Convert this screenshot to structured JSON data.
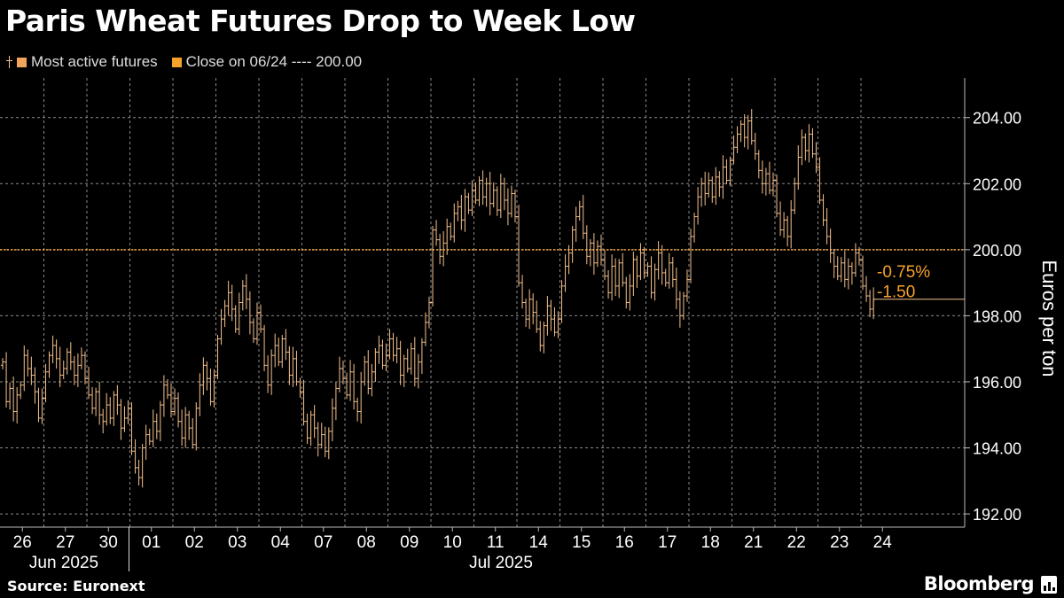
{
  "header": {
    "title": "Paris Wheat Futures Drop to Week Low"
  },
  "legend": {
    "series_label": "Most active futures",
    "close_label": "Close on 06/24 ---- 200.00"
  },
  "annotations": {
    "pct_change": "-0.75%",
    "abs_change": "-1.50"
  },
  "footer": {
    "source": "Source: Euronext",
    "brand": "Bloomberg",
    "brand_icon": "bloomberg-terminal-icon"
  },
  "colors": {
    "background": "#000000",
    "candle": "#f5c28e",
    "reference_line": "#f7a22b",
    "annotation_text": "#f7a22b",
    "grid": "#8a8a8a"
  },
  "chart_data": {
    "type": "ohlc",
    "title": "Paris Wheat Futures Drop to Week Low",
    "ylabel": "Euros per ton",
    "ylim": [
      191.6,
      205.2
    ],
    "yticks": [
      192,
      194,
      196,
      198,
      200,
      202,
      204
    ],
    "ytick_labels": [
      "192.00",
      "194.00",
      "196.00",
      "198.00",
      "200.00",
      "202.00",
      "204.00"
    ],
    "grid": true,
    "legend_position": "top-left",
    "reference_line": {
      "label": "Close on 06/24",
      "value": 200.0
    },
    "last_value": 198.5,
    "change_abs": -1.5,
    "change_pct": -0.75,
    "x_categories": [
      "26",
      "27",
      "30",
      "01",
      "02",
      "03",
      "04",
      "07",
      "08",
      "09",
      "10",
      "11",
      "14",
      "15",
      "16",
      "17",
      "18",
      "21",
      "22",
      "23",
      "24"
    ],
    "month_labels": [
      {
        "label": "Jun 2025",
        "start_index": 0
      },
      {
        "label": "Jul 2025",
        "start_index": 3
      }
    ],
    "session_closes": [
      [
        196.6,
        195.4,
        195.8,
        195.1,
        195.6,
        195.9,
        196.8,
        196.4,
        196.2,
        195.7,
        194.9,
        195.5
      ],
      [
        196.3,
        196.8,
        197.1,
        196.7,
        196.2,
        196.4,
        196.9,
        196.6,
        196.2,
        196.5,
        196.8,
        196.1
      ],
      [
        195.6,
        195.2,
        195.7,
        195.0,
        194.8,
        195.3,
        194.9,
        195.6,
        195.3,
        194.6,
        194.9,
        195.2
      ],
      [
        193.9,
        193.4,
        193.1,
        194.0,
        194.4,
        194.2,
        194.8,
        194.5,
        195.3,
        195.9,
        195.6,
        195.1
      ],
      [
        195.5,
        194.8,
        194.3,
        195.0,
        194.6,
        194.1,
        195.2,
        195.9,
        196.5,
        196.1,
        195.4,
        196.2
      ],
      [
        197.3,
        197.9,
        198.3,
        198.7,
        198.2,
        197.6,
        198.4,
        198.9,
        198.5,
        197.8,
        197.3,
        198.1
      ],
      [
        197.6,
        196.5,
        195.9,
        196.8,
        197.1,
        196.6,
        197.3,
        196.9,
        196.2,
        196.7,
        196.0,
        195.7
      ],
      [
        194.8,
        194.3,
        195.0,
        194.6,
        194.1,
        194.4,
        193.9,
        194.5,
        195.2,
        195.8,
        196.4,
        196.1
      ],
      [
        195.6,
        196.3,
        195.4,
        195.1,
        196.0,
        196.6,
        195.8,
        196.3,
        196.9,
        197.1,
        196.5,
        196.8
      ],
      [
        197.3,
        196.8,
        197.0,
        196.2,
        196.7,
        196.4,
        197.0,
        196.1,
        196.6,
        197.2,
        197.8,
        198.4
      ],
      [
        200.6,
        200.3,
        199.8,
        200.2,
        200.7,
        200.4,
        201.1,
        201.3,
        200.9,
        201.6,
        201.2,
        201.8
      ],
      [
        201.5,
        202.1,
        201.6,
        202.0,
        201.4,
        201.8,
        201.2,
        202.0,
        201.5,
        201.1,
        201.7,
        201.0
      ],
      [
        199.0,
        198.4,
        197.9,
        198.5,
        198.1,
        197.6,
        197.1,
        197.7,
        198.3,
        197.9,
        197.5,
        197.9
      ],
      [
        198.9,
        199.5,
        199.9,
        200.6,
        201.0,
        201.3,
        200.5,
        199.8,
        200.2,
        199.6,
        200.1,
        199.7
      ],
      [
        199.2,
        198.7,
        199.5,
        198.9,
        199.6,
        199.0,
        198.4,
        198.9,
        199.7,
        199.2,
        199.9,
        199.3
      ],
      [
        199.5,
        198.7,
        199.4,
        199.9,
        199.3,
        199.0,
        199.6,
        199.1,
        198.5,
        198.0,
        198.6,
        199.1
      ],
      [
        200.4,
        201.0,
        201.6,
        202.0,
        201.7,
        202.1,
        201.6,
        202.2,
        201.9,
        202.5,
        202.1,
        202.7
      ],
      [
        203.1,
        203.5,
        203.8,
        203.4,
        203.9,
        203.3,
        202.9,
        202.4,
        202.0,
        202.3,
        201.8,
        202.1
      ],
      [
        201.1,
        200.6,
        200.9,
        200.4,
        201.2,
        202.0,
        202.8,
        203.4,
        203.0,
        203.5,
        202.9,
        202.5
      ],
      [
        201.5,
        200.9,
        200.4,
        199.9,
        199.5,
        199.2,
        199.6,
        199.1,
        199.5,
        199.3,
        199.9,
        199.7
      ],
      [
        198.9,
        198.6,
        198.2,
        198.5
      ]
    ]
  }
}
